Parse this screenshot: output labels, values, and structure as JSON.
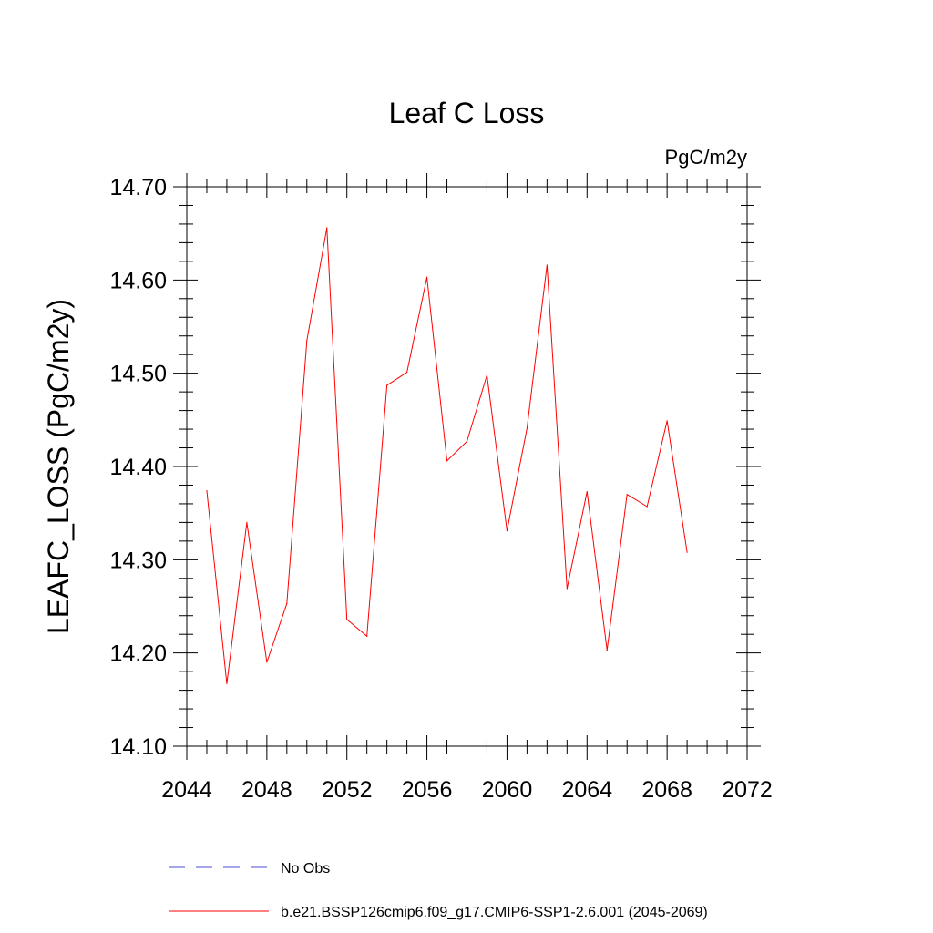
{
  "chart_data": {
    "type": "line",
    "title": "Leaf C Loss",
    "units": "PgC/m2y",
    "ylabel": "LEAFC_LOSS  (PgC/m2y)",
    "xlabel": "",
    "xlim": [
      2044,
      2072
    ],
    "ylim": [
      14.1,
      14.7
    ],
    "x_ticks": [
      2044,
      2048,
      2052,
      2056,
      2060,
      2064,
      2068,
      2072
    ],
    "x_tick_labels": [
      "2044",
      "2048",
      "2052",
      "2056",
      "2060",
      "2064",
      "2068",
      "2072"
    ],
    "y_ticks": [
      14.1,
      14.2,
      14.3,
      14.4,
      14.5,
      14.6,
      14.7
    ],
    "y_tick_labels": [
      "14.10",
      "14.20",
      "14.30",
      "14.40",
      "14.50",
      "14.60",
      "14.70"
    ],
    "grid": false,
    "series": [
      {
        "name": "b.e21.BSSP126cmip6.f09_g17.CMIP6-SSP1-2.6.001 (2045-2069)",
        "color": "#ff0000",
        "style": "solid",
        "x": [
          2045,
          2046,
          2047,
          2048,
          2049,
          2050,
          2051,
          2052,
          2053,
          2054,
          2055,
          2056,
          2057,
          2058,
          2059,
          2060,
          2061,
          2062,
          2063,
          2064,
          2065,
          2066,
          2067,
          2068,
          2069
        ],
        "values": [
          14.374,
          14.167,
          14.34,
          14.19,
          14.253,
          14.535,
          14.656,
          14.236,
          14.218,
          14.487,
          14.501,
          14.603,
          14.406,
          14.427,
          14.498,
          14.331,
          14.441,
          14.616,
          14.269,
          14.373,
          14.203,
          14.37,
          14.357,
          14.449,
          14.308
        ]
      }
    ],
    "legend": {
      "placement": "bottom",
      "entries": [
        {
          "label": "No Obs",
          "color": "#4b4bd8",
          "style": "dashed"
        },
        {
          "label": "b.e21.BSSP126cmip6.f09_g17.CMIP6-SSP1-2.6.001 (2045-2069)",
          "color": "#ff0000",
          "style": "solid"
        }
      ]
    }
  }
}
